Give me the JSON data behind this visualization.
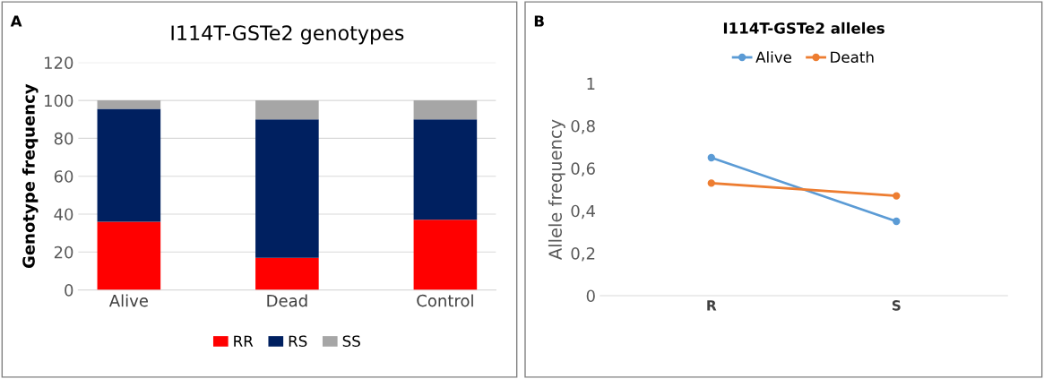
{
  "chart_data": [
    {
      "type": "bar",
      "title": "I114T-GSTe2 genotypes",
      "ylabel": "Genotype frequency",
      "annotations": [
        "A"
      ],
      "categories": [
        "Alive",
        "Dead",
        "Control"
      ],
      "stacked": true,
      "series": [
        {
          "name": "RR",
          "color": "#ff0000",
          "values": [
            36,
            17,
            37
          ]
        },
        {
          "name": "RS",
          "color": "#002060",
          "values": [
            59.5,
            73,
            53
          ]
        },
        {
          "name": "SS",
          "color": "#a6a6a6",
          "values": [
            4.5,
            10,
            10
          ]
        }
      ],
      "ylim": [
        0,
        120
      ],
      "yticks": [
        0,
        20,
        40,
        60,
        80,
        100,
        120
      ],
      "grid": "y",
      "legend": "bottom"
    },
    {
      "type": "line",
      "title": "I114T-GSTe2 alleles",
      "ylabel": "Allele frequency",
      "annotations": [
        "B"
      ],
      "categories": [
        "R",
        "S"
      ],
      "marker": "circle",
      "series": [
        {
          "name": "Alive",
          "color": "#5b9bd5",
          "values": [
            0.65,
            0.35
          ]
        },
        {
          "name": "Death",
          "color": "#ed7d31",
          "values": [
            0.53,
            0.47
          ]
        }
      ],
      "ylim": [
        0,
        1
      ],
      "yticks": [
        0,
        {
          "value": 0.2,
          "label": "0,2"
        },
        {
          "value": 0.4,
          "label": "0,4"
        },
        {
          "value": 0.6,
          "label": "0,6"
        },
        {
          "value": 0.8,
          "label": "0,8"
        },
        1
      ],
      "legend": "top"
    }
  ]
}
